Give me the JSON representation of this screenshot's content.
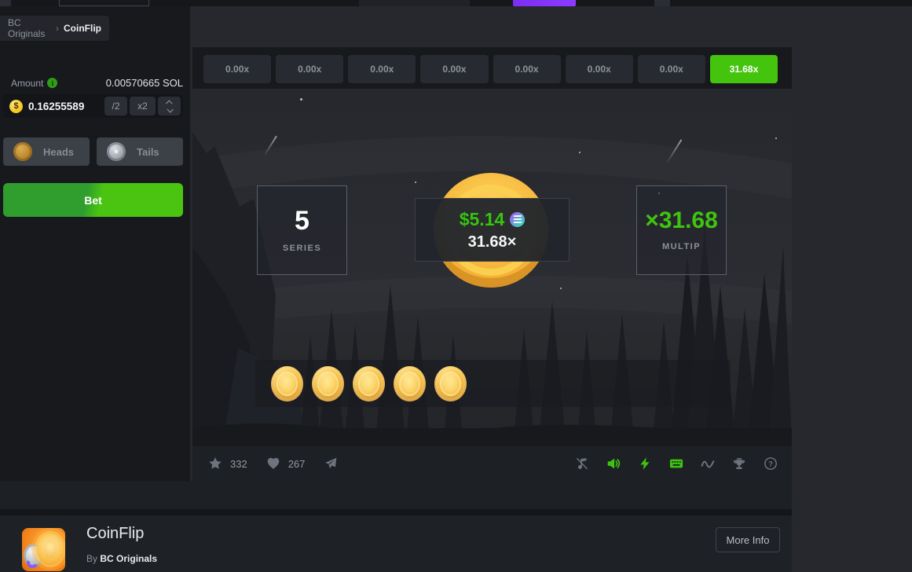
{
  "breadcrumb": {
    "items": [
      {
        "label": "BC Originals"
      },
      {
        "label": "CoinFlip"
      }
    ],
    "separator": "›"
  },
  "sidebar": {
    "amount_label": "Amount",
    "balance": "0.00570665 SOL",
    "input": {
      "currency_symbol": "$",
      "value": "0.16255589",
      "half": "/2",
      "double": "x2"
    },
    "heads_label": "Heads",
    "tails_label": "Tails",
    "bet_label": "Bet"
  },
  "history": {
    "items": [
      "0.00x",
      "0.00x",
      "0.00x",
      "0.00x",
      "0.00x",
      "0.00x",
      "0.00x",
      "31.68x"
    ],
    "win_index": 7
  },
  "scene": {
    "series": {
      "value": "5",
      "label": "SERIES"
    },
    "payout": {
      "amount": "$5.14",
      "currency_icon": "solana-icon",
      "multiplier": "31.68×"
    },
    "multiplier": {
      "value": "×31.68",
      "label": "MULTIP"
    },
    "result_coins": 5
  },
  "toolbar": {
    "favorites_count": "332",
    "likes_count": "267",
    "left_icons": [
      "star-icon",
      "heart-icon",
      "share-icon"
    ],
    "right_icons": [
      {
        "name": "music-off-icon",
        "active": false
      },
      {
        "name": "sound-icon",
        "active": true
      },
      {
        "name": "turbo-icon",
        "active": true
      },
      {
        "name": "hotkeys-icon",
        "active": true
      },
      {
        "name": "live-stats-icon",
        "active": false
      },
      {
        "name": "trophy-icon",
        "active": false
      },
      {
        "name": "help-icon",
        "active": false
      }
    ]
  },
  "footer": {
    "title": "CoinFlip",
    "by_label": "By",
    "provider": "BC Originals",
    "more_info": "More Info"
  },
  "colors": {
    "page_bg": "#26282d",
    "module_bg": "#17191d",
    "accent_green": "#3ec40f",
    "chip_win_bg": "#45c40e",
    "gold": "#f6bb43",
    "purple_accent": "#7b2ff0"
  }
}
